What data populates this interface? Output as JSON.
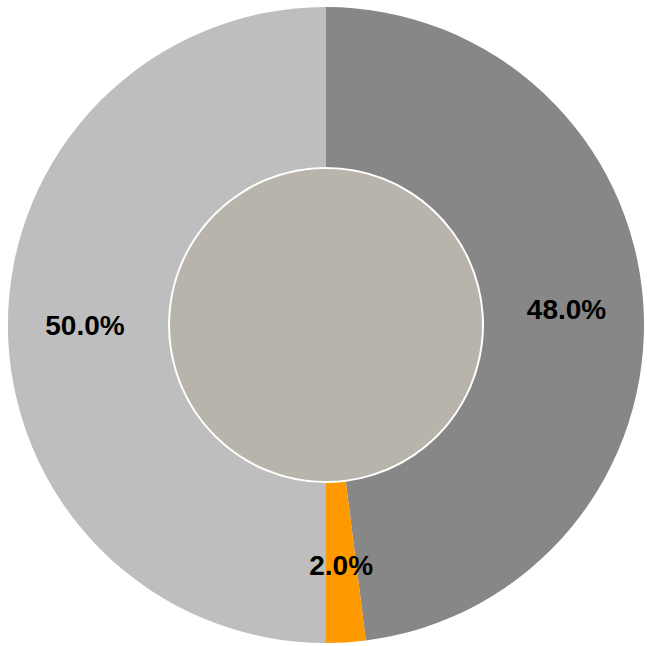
{
  "chart_data": {
    "type": "pie",
    "values": [
      48.0,
      2.0,
      50.0
    ],
    "value_labels": [
      "48.0%",
      "2.0%",
      "50.0%"
    ],
    "colors": [
      "#878787",
      "#ff9900",
      "#bebebe"
    ],
    "data_labels": true
  }
}
